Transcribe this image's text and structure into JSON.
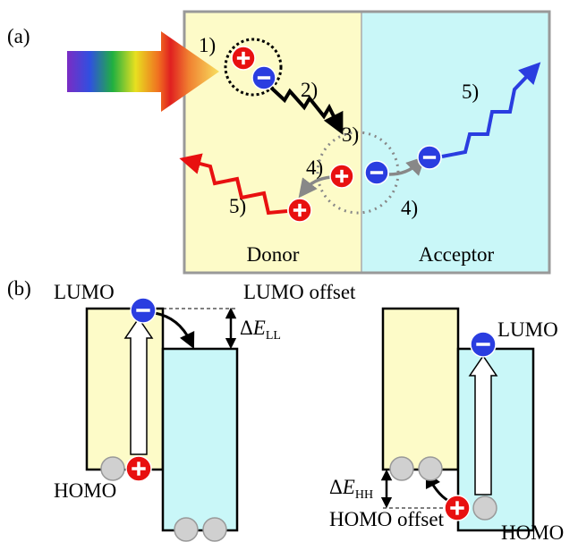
{
  "panel_a": {
    "label": "(a)",
    "steps": [
      "1)",
      "2)",
      "3)",
      "4)",
      "4)",
      "5)",
      "5)"
    ],
    "donor": "Donor",
    "acceptor": "Acceptor"
  },
  "panel_b": {
    "label": "(b)",
    "left": {
      "lumo": "LUMO",
      "homo": "HOMO",
      "offset": "LUMO offset",
      "delta": "Δ",
      "symbol": "E",
      "subscript": "LL"
    },
    "right": {
      "lumo": "LUMO",
      "homo": "HOMO",
      "offset": "HOMO offset",
      "delta": "Δ",
      "symbol": "E",
      "subscript": "HH"
    }
  }
}
